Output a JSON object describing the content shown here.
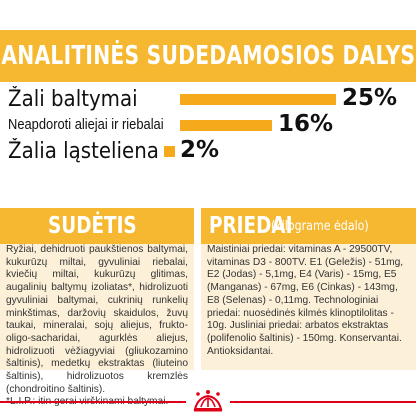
{
  "analysis": {
    "title": "ANALITINĖS SUDEDAMOSIOS DALYS",
    "items": [
      {
        "label": "Žali baltymai",
        "value": "25%",
        "percent": 25
      },
      {
        "label": "Neapdoroti aliejai ir riebalai",
        "value": "16%",
        "percent": 16
      },
      {
        "label": "Žalia ląsteliena",
        "value": "2%",
        "percent": 2
      }
    ]
  },
  "composition": {
    "title": "SUDĖTIS",
    "text": "Ryžiai, dehidruoti paukštienos baltymai, kukurūzų miltai, gyvuliniai riebalai, kviečių miltai, kukurūzų glitimas, augalinių baltymų izoliatas*, hidrolizuoti gyvuliniai baltymai, cukrinių runkelių minkštimas, daržovių skaidulos, žuvų taukai, mineralai, sojų aliejus, frukto-oligo-sacharidai, agurklės aliejus, hidrolizuoti vėžiagyviai (gliukozamino šaltinis), medetkų ekstraktas (liuteino šaltinis), hidrolizuotos kremzlės (chondroitino šaltinis).\n*L.I.P.: itin gerai virškinami baltymai."
  },
  "additives": {
    "title": "PRIEDAI",
    "subtitle": "(kilograme ėdalo)",
    "text": "Maistiniai priedai: vitaminas A - 29500TV, vitaminas D3 - 800TV. E1 (Geležis) - 51mg, E2 (Jodas) - 5,1mg, E4 (Varis) - 15mg, E5 (Manganas) - 67mg, E6 (Cinkas) - 143mg, E8 (Selenas) - 0,11mg. Technologiniai priedai: nuosėdinės kilmės klinoptilolitas - 10g. Jusliniai priedai: arbatos ekstraktas (polifenolio šaltinis) - 150mg. Konservantai. Antioksidantai."
  },
  "colors": {
    "accent": "#f6b830",
    "bar": "#f4aa1a",
    "brand_red": "#e1001a"
  },
  "footer": {
    "logo": "royal-canin-crown-icon"
  }
}
